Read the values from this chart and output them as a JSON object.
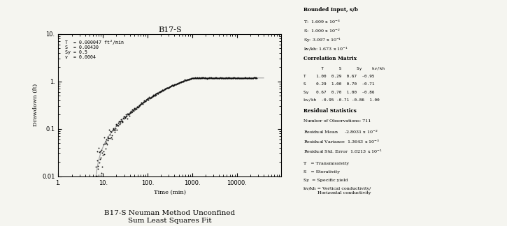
{
  "title": "B17-S",
  "subtitle_line1": "B17-S Neuman Method Unconfined",
  "subtitle_line2": "Sum Least Squares Fit",
  "xlabel": "Time (min)",
  "ylabel": "Drawdown (ft)",
  "xlim": [
    1,
    100000
  ],
  "ylim": [
    0.01,
    10
  ],
  "legend_lines": [
    "T  = 0.000047 ft²/min",
    "S  = 0.00430",
    "Sy = 0.5",
    "v  = 0.0004"
  ],
  "fit_line_color": "#aaaaaa",
  "data_color": "#111111",
  "background_color": "#f5f5f0",
  "font_size": 6,
  "title_fontsize": 8
}
